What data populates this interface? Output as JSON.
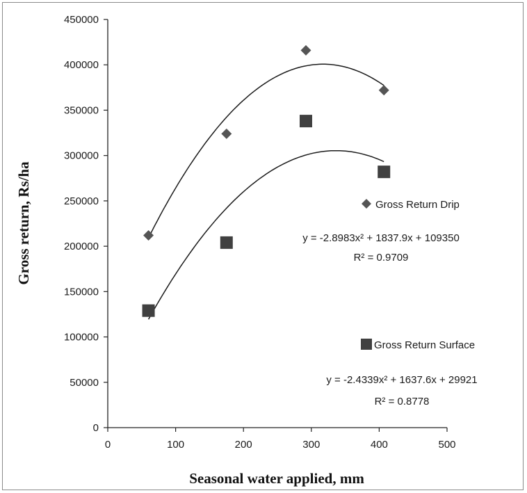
{
  "chart_data": {
    "type": "scatter",
    "xlabel": "Seasonal water applied, mm",
    "ylabel": "Gross return, Rs/ha",
    "xlim": [
      0,
      500
    ],
    "ylim": [
      0,
      450000
    ],
    "x_ticks": [
      "0",
      "100",
      "200",
      "300",
      "400",
      "500"
    ],
    "y_ticks": [
      "0",
      "50000",
      "100000",
      "150000",
      "200000",
      "250000",
      "300000",
      "350000",
      "400000",
      "450000"
    ],
    "grid": false,
    "legend_placement": "right",
    "series": [
      {
        "name": "Gross Return Drip",
        "marker": "diamond",
        "color": "#555555",
        "points": [
          {
            "x": 60,
            "y": 212000
          },
          {
            "x": 175,
            "y": 324000
          },
          {
            "x": 292,
            "y": 416000
          },
          {
            "x": 407,
            "y": 372000
          }
        ],
        "trendline": {
          "type": "polynomial",
          "a": -2.8983,
          "b": 1837.9,
          "c": 109350,
          "equation_label": "y = -2.8983x² + 1837.9x + 109350",
          "r2_label": "R² = 0.9709"
        }
      },
      {
        "name": "Gross Return Surface",
        "marker": "square",
        "color": "#404040",
        "points": [
          {
            "x": 60,
            "y": 129000
          },
          {
            "x": 175,
            "y": 204000
          },
          {
            "x": 292,
            "y": 338000
          },
          {
            "x": 407,
            "y": 282000
          }
        ],
        "trendline": {
          "type": "polynomial",
          "a": -2.4339,
          "b": 1637.6,
          "c": 29921,
          "equation_label": "y = -2.4339x² + 1637.6x + 29921",
          "r2_label": "R² = 0.8778"
        }
      }
    ]
  }
}
